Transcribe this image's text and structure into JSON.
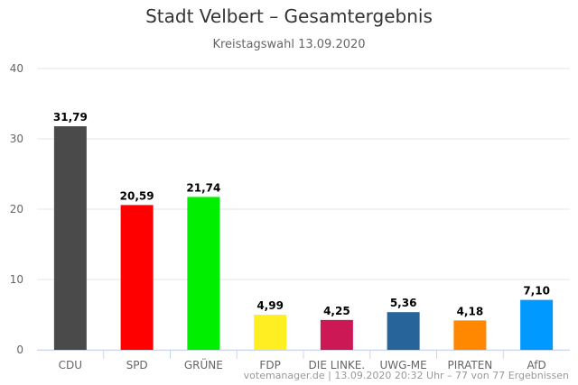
{
  "chart_data": {
    "type": "bar",
    "title": "Stadt Velbert – Gesamtergebnis",
    "subtitle": "Kreistagswahl 13.09.2020",
    "categories": [
      "CDU",
      "SPD",
      "GRÜNE",
      "FDP",
      "DIE LINKE.",
      "UWG-ME",
      "PIRATEN",
      "AfD"
    ],
    "values": [
      31.79,
      20.59,
      21.74,
      4.99,
      4.25,
      5.36,
      4.18,
      7.1
    ],
    "value_labels": [
      "31,79",
      "20,59",
      "21,74",
      "4,99",
      "4,25",
      "5,36",
      "4,18",
      "7,10"
    ],
    "colors": [
      "#4a4a4a",
      "#ff0000",
      "#00ee00",
      "#ffee22",
      "#cc1855",
      "#26649a",
      "#ff8800",
      "#0099ff"
    ],
    "ylim": [
      0,
      40
    ],
    "yticks": [
      0,
      10,
      20,
      30,
      40
    ],
    "grid": true,
    "legend": "none"
  },
  "credits": "votemanager.de | 13.09.2020 20:32 Uhr – 77 von 77 Ergebnissen"
}
